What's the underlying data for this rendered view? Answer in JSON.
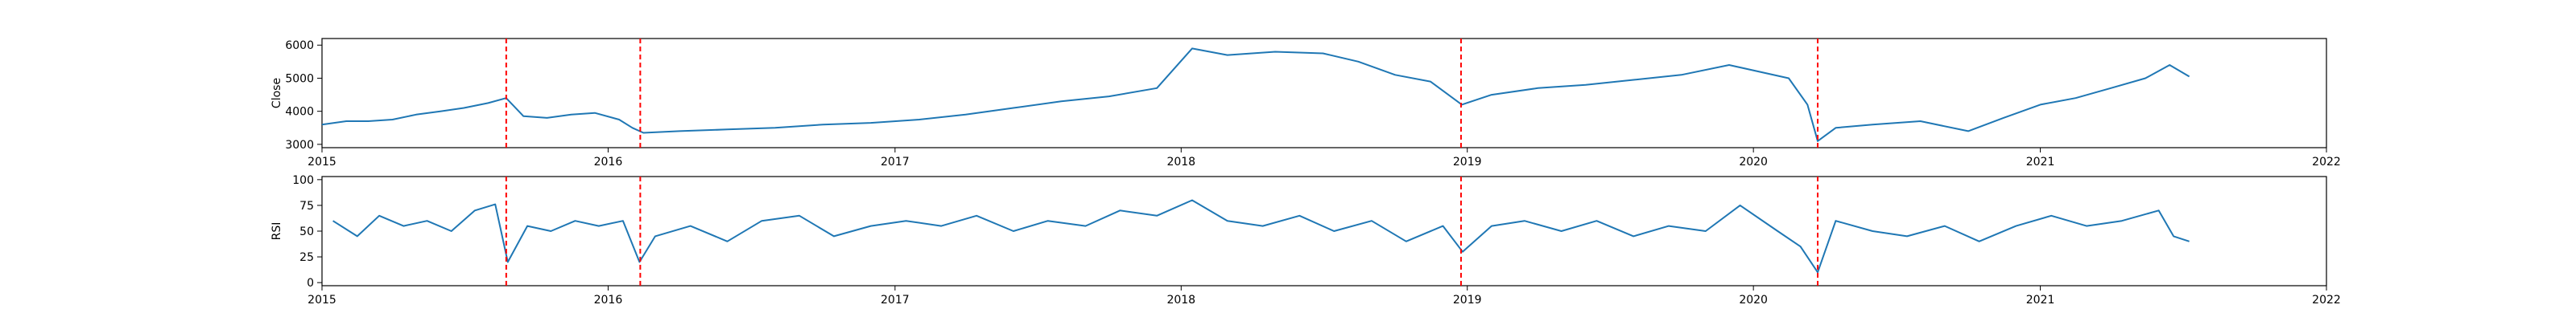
{
  "chart_data": [
    {
      "type": "line",
      "name_key": "close",
      "ylabel": "Close",
      "xlim": [
        "2015-01-01",
        "2022-01-01"
      ],
      "ylim": [
        2900,
        6200
      ],
      "yticks": [
        3000,
        4000,
        5000,
        6000
      ],
      "xticks": [
        "2015",
        "2016",
        "2017",
        "2018",
        "2019",
        "2020",
        "2021",
        "2022"
      ],
      "grid": false,
      "line_color": "#1f77b4",
      "series": [
        {
          "x": [
            "2015-01-01",
            "2015-02-01",
            "2015-03-01",
            "2015-04-01",
            "2015-05-01",
            "2015-06-01",
            "2015-07-01",
            "2015-08-01",
            "2015-08-24",
            "2015-09-15",
            "2015-10-15",
            "2015-11-15",
            "2015-12-15",
            "2016-01-15",
            "2016-02-01",
            "2016-02-15",
            "2016-04-01",
            "2016-06-01",
            "2016-08-01",
            "2016-10-01",
            "2016-12-01",
            "2017-02-01",
            "2017-04-01",
            "2017-06-01",
            "2017-08-01",
            "2017-10-01",
            "2017-12-01",
            "2018-01-15",
            "2018-03-01",
            "2018-05-01",
            "2018-07-01",
            "2018-08-15",
            "2018-10-01",
            "2018-11-15",
            "2018-12-25",
            "2019-02-01",
            "2019-04-01",
            "2019-06-01",
            "2019-08-01",
            "2019-10-01",
            "2019-12-01",
            "2020-02-15",
            "2020-03-10",
            "2020-03-23",
            "2020-04-15",
            "2020-06-01",
            "2020-08-01",
            "2020-10-01",
            "2020-11-15",
            "2021-01-01",
            "2021-02-15",
            "2021-04-01",
            "2021-05-15",
            "2021-06-15",
            "2021-07-10"
          ],
          "y": [
            3600,
            3700,
            3700,
            3750,
            3900,
            4000,
            4100,
            4250,
            4400,
            3850,
            3800,
            3900,
            3950,
            3750,
            3500,
            3350,
            3400,
            3450,
            3500,
            3600,
            3650,
            3750,
            3900,
            4100,
            4300,
            4450,
            4700,
            5900,
            5700,
            5800,
            5750,
            5500,
            5100,
            4900,
            4200,
            4500,
            4700,
            4800,
            4950,
            5100,
            5400,
            5000,
            4200,
            3100,
            3500,
            3600,
            3700,
            3400,
            3800,
            4200,
            4400,
            4700,
            5000,
            5400,
            5050
          ]
        }
      ],
      "event_lines": [
        "2015-08-24",
        "2016-02-11",
        "2018-12-24",
        "2020-03-23"
      ],
      "event_line_color": "#ff0000"
    },
    {
      "type": "line",
      "name_key": "rsi",
      "ylabel": "RSI",
      "xlim": [
        "2015-01-01",
        "2022-01-01"
      ],
      "ylim": [
        -3,
        103
      ],
      "yticks": [
        0,
        25,
        50,
        75,
        100
      ],
      "xticks": [
        "2015",
        "2016",
        "2017",
        "2018",
        "2019",
        "2020",
        "2021",
        "2022"
      ],
      "grid": false,
      "line_color": "#1f77b4",
      "series": [
        {
          "x": [
            "2015-01-15",
            "2015-02-15",
            "2015-03-15",
            "2015-04-15",
            "2015-05-15",
            "2015-06-15",
            "2015-07-15",
            "2015-08-10",
            "2015-08-26",
            "2015-09-20",
            "2015-10-20",
            "2015-11-20",
            "2015-12-20",
            "2016-01-20",
            "2016-02-10",
            "2016-03-01",
            "2016-04-15",
            "2016-06-01",
            "2016-07-15",
            "2016-09-01",
            "2016-10-15",
            "2016-12-01",
            "2017-01-15",
            "2017-03-01",
            "2017-04-15",
            "2017-06-01",
            "2017-07-15",
            "2017-09-01",
            "2017-10-15",
            "2017-12-01",
            "2018-01-15",
            "2018-03-01",
            "2018-04-15",
            "2018-06-01",
            "2018-07-15",
            "2018-09-01",
            "2018-10-15",
            "2018-12-01",
            "2018-12-26",
            "2019-02-01",
            "2019-03-15",
            "2019-05-01",
            "2019-06-15",
            "2019-08-01",
            "2019-09-15",
            "2019-11-01",
            "2019-12-15",
            "2020-02-01",
            "2020-03-01",
            "2020-03-23",
            "2020-04-15",
            "2020-06-01",
            "2020-07-15",
            "2020-09-01",
            "2020-10-15",
            "2020-12-01",
            "2021-01-15",
            "2021-03-01",
            "2021-04-15",
            "2021-06-01",
            "2021-06-20",
            "2021-07-10"
          ],
          "y": [
            60,
            45,
            65,
            55,
            60,
            50,
            70,
            76,
            20,
            55,
            50,
            60,
            55,
            60,
            20,
            45,
            55,
            40,
            60,
            65,
            45,
            55,
            60,
            55,
            65,
            50,
            60,
            55,
            70,
            65,
            80,
            60,
            55,
            65,
            50,
            60,
            40,
            55,
            30,
            55,
            60,
            50,
            60,
            45,
            55,
            50,
            75,
            50,
            35,
            10,
            60,
            50,
            45,
            55,
            40,
            55,
            65,
            55,
            60,
            70,
            45,
            40
          ]
        }
      ],
      "event_lines": [
        "2015-08-24",
        "2016-02-11",
        "2018-12-24",
        "2020-03-23"
      ],
      "event_line_color": "#ff0000"
    }
  ]
}
